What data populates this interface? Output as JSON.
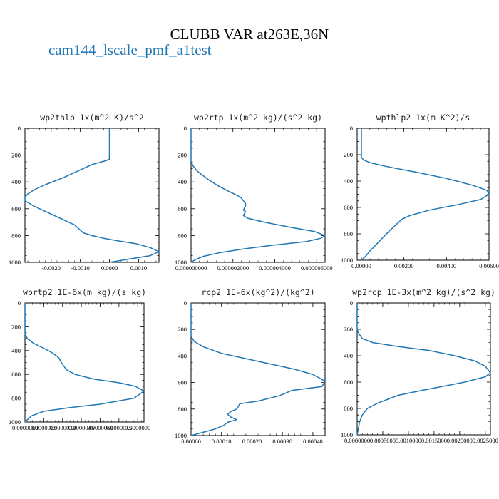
{
  "figure": {
    "title": "CLUBB VAR at263E,36N",
    "legend": "cam144_lscale_pmf_a1test",
    "line_color": "#1f77b4"
  },
  "chart_data": [
    {
      "type": "line",
      "title": "wp2thlp  1x(m^2 K)/s^2",
      "xlim": [
        -0.0029,
        0.0017
      ],
      "ylim": [
        1000,
        0
      ],
      "xticks": [
        -0.002,
        -0.001,
        0.0,
        0.001
      ],
      "xtick_labels": [
        "-0.0020",
        "-0.0010",
        "0.0000",
        "0.0010"
      ],
      "yticks": [
        0,
        200,
        400,
        600,
        800,
        1000
      ],
      "ytick_labels": [
        "0",
        "200",
        "400",
        "600",
        "800",
        "1000"
      ],
      "series": [
        {
          "x": [
            0.0,
            0.0,
            0.0,
            0.0,
            0.0,
            0.0,
            0.0,
            -0.0001,
            -0.0006,
            -0.0011,
            -0.0016,
            -0.0022,
            -0.0026,
            -0.0028,
            -0.0029,
            -0.0029,
            -0.0026,
            -0.0021,
            -0.0016,
            -0.0012,
            -0.0011,
            -0.001,
            -0.0009,
            -0.0006,
            -0.0002,
            0.0003,
            0.0009,
            0.0014,
            0.0017,
            0.0014,
            0.0007,
            0.0
          ],
          "y": [
            0,
            50,
            100,
            150,
            200,
            215,
            230,
            240,
            270,
            320,
            370,
            420,
            460,
            490,
            510,
            540,
            580,
            630,
            680,
            720,
            740,
            760,
            780,
            800,
            820,
            840,
            860,
            890,
            920,
            950,
            975,
            1000
          ]
        }
      ]
    },
    {
      "type": "line",
      "title": "wp2rtp  1x(m^2 kg)/(s^2 kg)",
      "xlim": [
        0.0,
        6.4e-06
      ],
      "ylim": [
        1000,
        0
      ],
      "xticks": [
        0.0,
        2e-06,
        4e-06,
        6e-06
      ],
      "xtick_labels": [
        "0.000000000",
        "0.000002000",
        "0.000004000",
        "0.000006000"
      ],
      "yticks": [
        0,
        200,
        400,
        600,
        800,
        1000
      ],
      "ytick_labels": [
        "0",
        "200",
        "400",
        "600",
        "800",
        "1000"
      ],
      "series": [
        {
          "x": [
            0.0,
            0.0,
            0.0,
            0.0,
            1e-07,
            3e-07,
            8e-07,
            1.3e-06,
            1.8e-06,
            2.2e-06,
            2.4e-06,
            2.6e-06,
            2.6e-06,
            2.5e-06,
            2.6e-06,
            2.5e-06,
            2.7e-06,
            3.5e-06,
            4.8e-06,
            5.9e-06,
            6.4e-06,
            6.2e-06,
            5.5e-06,
            4e-06,
            2.5e-06,
            1.3e-06,
            6e-07,
            2e-07,
            0.0
          ],
          "y": [
            0,
            100,
            200,
            250,
            280,
            320,
            380,
            430,
            470,
            500,
            520,
            560,
            580,
            610,
            620,
            650,
            670,
            700,
            740,
            770,
            800,
            820,
            845,
            870,
            900,
            930,
            955,
            980,
            1000
          ]
        }
      ]
    },
    {
      "type": "line",
      "title": "wpthlp2  1x(m K^2)/s",
      "xlim": [
        -0.0002,
        0.006
      ],
      "ylim": [
        1000,
        0
      ],
      "xticks": [
        0.0,
        0.002,
        0.004,
        0.006
      ],
      "xtick_labels": [
        "0.00000",
        "0.00200",
        "0.00400",
        "0.00600"
      ],
      "yticks": [
        0,
        200,
        400,
        600,
        800,
        1000
      ],
      "ytick_labels": [
        "0",
        "200",
        "400",
        "600",
        "800",
        "1000"
      ],
      "series": [
        {
          "x": [
            0.0,
            0.0,
            0.0,
            0.0,
            0.0001,
            0.0004,
            0.0012,
            0.0025,
            0.004,
            0.0052,
            0.0059,
            0.006,
            0.0056,
            0.0045,
            0.0032,
            0.0023,
            0.0019,
            0.0017,
            0.0013,
            0.001,
            0.0007,
            0.0004,
            0.0002,
            0.0
          ],
          "y": [
            0,
            100,
            200,
            220,
            240,
            260,
            290,
            330,
            380,
            430,
            470,
            500,
            540,
            580,
            620,
            660,
            690,
            720,
            780,
            830,
            880,
            930,
            970,
            1000
          ]
        }
      ]
    },
    {
      "type": "line",
      "title": "wprtp2  1E-6x(m kg)/(s kg)",
      "xlim": [
        0.0,
        9.5e-06
      ],
      "ylim": [
        1000,
        0
      ],
      "xticks": [
        0.0,
        1.5e-06,
        3e-06,
        4.5e-06,
        6e-06,
        7.5e-06,
        9e-06
      ],
      "xtick_labels": [
        "0.0000000",
        "0.0000015",
        "0.0000030",
        "0.0000045",
        "0.0000060",
        "0.0000075",
        "0.0000090"
      ],
      "yticks": [
        0,
        200,
        400,
        600,
        800,
        1000
      ],
      "ytick_labels": [
        "0",
        "200",
        "400",
        "600",
        "800",
        "1000"
      ],
      "series": [
        {
          "x": [
            0.0,
            0.0,
            0.0,
            0.0,
            2e-07,
            7e-07,
            1.5e-06,
            2.2e-06,
            2.7e-06,
            2.9e-06,
            3.3e-06,
            4e-06,
            5.5e-06,
            7.5e-06,
            8.8e-06,
            9.5e-06,
            8.7e-06,
            6e-06,
            3.5e-06,
            1.5e-06,
            5e-07,
            0.0
          ],
          "y": [
            0,
            100,
            200,
            260,
            300,
            340,
            380,
            420,
            460,
            500,
            560,
            600,
            640,
            670,
            700,
            740,
            800,
            850,
            880,
            910,
            950,
            1000
          ]
        }
      ]
    },
    {
      "type": "line",
      "title": "rcp2  1E-6x(kg^2)/(kg^2)",
      "xlim": [
        0.0,
        0.00044
      ],
      "ylim": [
        1000,
        0
      ],
      "xticks": [
        0.0,
        0.0001,
        0.0002,
        0.0003,
        0.0004
      ],
      "xtick_labels": [
        "0.00000",
        "0.00010",
        "0.00020",
        "0.00030",
        "0.00040"
      ],
      "yticks": [
        0,
        200,
        400,
        600,
        800,
        1000
      ],
      "ytick_labels": [
        "0",
        "200",
        "400",
        "600",
        "800",
        "1000"
      ],
      "series": [
        {
          "x": [
            0.0,
            0.0,
            0.0,
            0.0,
            1e-05,
            4e-05,
            0.0001,
            0.00018,
            0.00026,
            0.00034,
            0.0004,
            0.00044,
            0.00043,
            0.00033,
            0.00029,
            0.00022,
            0.00016,
            0.00015,
            0.00013,
            0.00012,
            0.00013,
            0.00015,
            0.00012,
            0.00011,
            8e-05,
            4e-05,
            0.0
          ],
          "y": [
            0,
            100,
            200,
            250,
            290,
            330,
            380,
            420,
            460,
            500,
            540,
            590,
            630,
            660,
            700,
            740,
            760,
            800,
            820,
            840,
            860,
            880,
            900,
            920,
            950,
            975,
            1000
          ]
        }
      ]
    },
    {
      "type": "line",
      "title": "wp2rcp  1E-3x(m^2 kg)/(s^2 kg)",
      "xlim": [
        0.0,
        0.0026
      ],
      "ylim": [
        1000,
        0
      ],
      "xticks": [
        0.0,
        0.0005,
        0.001,
        0.0015,
        0.002,
        0.0025
      ],
      "xtick_labels": [
        "0.0000000",
        "0.0005000",
        "0.0010000",
        "0.0015000",
        "0.0020000",
        "0.0025000"
      ],
      "yticks": [
        0,
        200,
        400,
        600,
        800,
        1000
      ],
      "ytick_labels": [
        "0",
        "200",
        "400",
        "600",
        "800",
        "1000"
      ],
      "series": [
        {
          "x": [
            0.0,
            0.0,
            0.0,
            3e-05,
            0.0001,
            0.0003,
            0.0008,
            0.0014,
            0.0019,
            0.0023,
            0.0025,
            0.0026,
            0.0025,
            0.0021,
            0.0013,
            0.0008,
            0.0004,
            0.0002,
            0.0001,
            5e-05,
            0.0
          ],
          "y": [
            0,
            100,
            200,
            230,
            270,
            300,
            330,
            360,
            400,
            440,
            480,
            530,
            560,
            600,
            660,
            700,
            760,
            800,
            850,
            900,
            1000
          ]
        }
      ]
    }
  ]
}
